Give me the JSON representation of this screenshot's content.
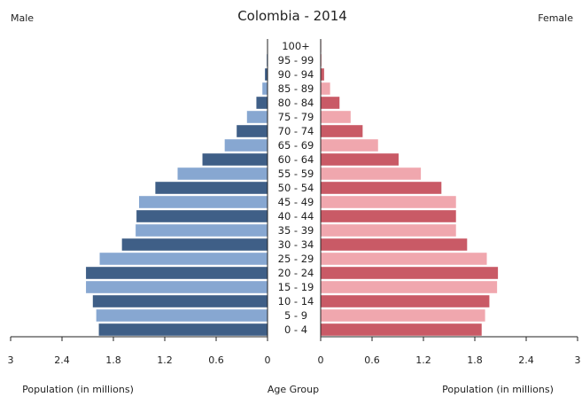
{
  "chart_data": {
    "type": "bar",
    "title": "Colombia - 2014",
    "left_label": "Male",
    "right_label": "Female",
    "age_groups": [
      "0 - 4",
      "5 - 9",
      "10 - 14",
      "15 - 19",
      "20 - 24",
      "25 - 29",
      "30 - 34",
      "35 - 39",
      "40 - 44",
      "45 - 49",
      "50 - 54",
      "55 - 59",
      "60 - 64",
      "65 - 69",
      "70 - 74",
      "75 - 79",
      "80 - 84",
      "85 - 89",
      "90 - 94",
      "95 - 99",
      "100+"
    ],
    "series": [
      {
        "name": "Male",
        "values": [
          1.97,
          2.0,
          2.04,
          2.12,
          2.12,
          1.96,
          1.7,
          1.54,
          1.53,
          1.5,
          1.31,
          1.05,
          0.76,
          0.5,
          0.36,
          0.24,
          0.13,
          0.06,
          0.03,
          0.01,
          0.003
        ]
      },
      {
        "name": "Female",
        "values": [
          1.88,
          1.92,
          1.97,
          2.06,
          2.07,
          1.94,
          1.71,
          1.58,
          1.58,
          1.58,
          1.41,
          1.17,
          0.91,
          0.67,
          0.49,
          0.35,
          0.22,
          0.11,
          0.04,
          0.01,
          0.004
        ]
      }
    ],
    "left_ticks": [
      "3",
      "2.4",
      "1.8",
      "1.2",
      "0.6",
      "0"
    ],
    "right_ticks": [
      "0",
      "0.6",
      "1.2",
      "1.8",
      "2.4",
      "3"
    ],
    "xlim": [
      0,
      3
    ],
    "xlabel_left": "Population (in millions)",
    "xlabel_center": "Age Group",
    "xlabel_right": "Population (in millions)",
    "colors": {
      "male_dark": "#3f5f87",
      "male_light": "#87a7d1",
      "female_dark": "#c95a66",
      "female_light": "#f0a7ae",
      "axis": "#222222"
    },
    "grid": false,
    "legend": "none"
  }
}
